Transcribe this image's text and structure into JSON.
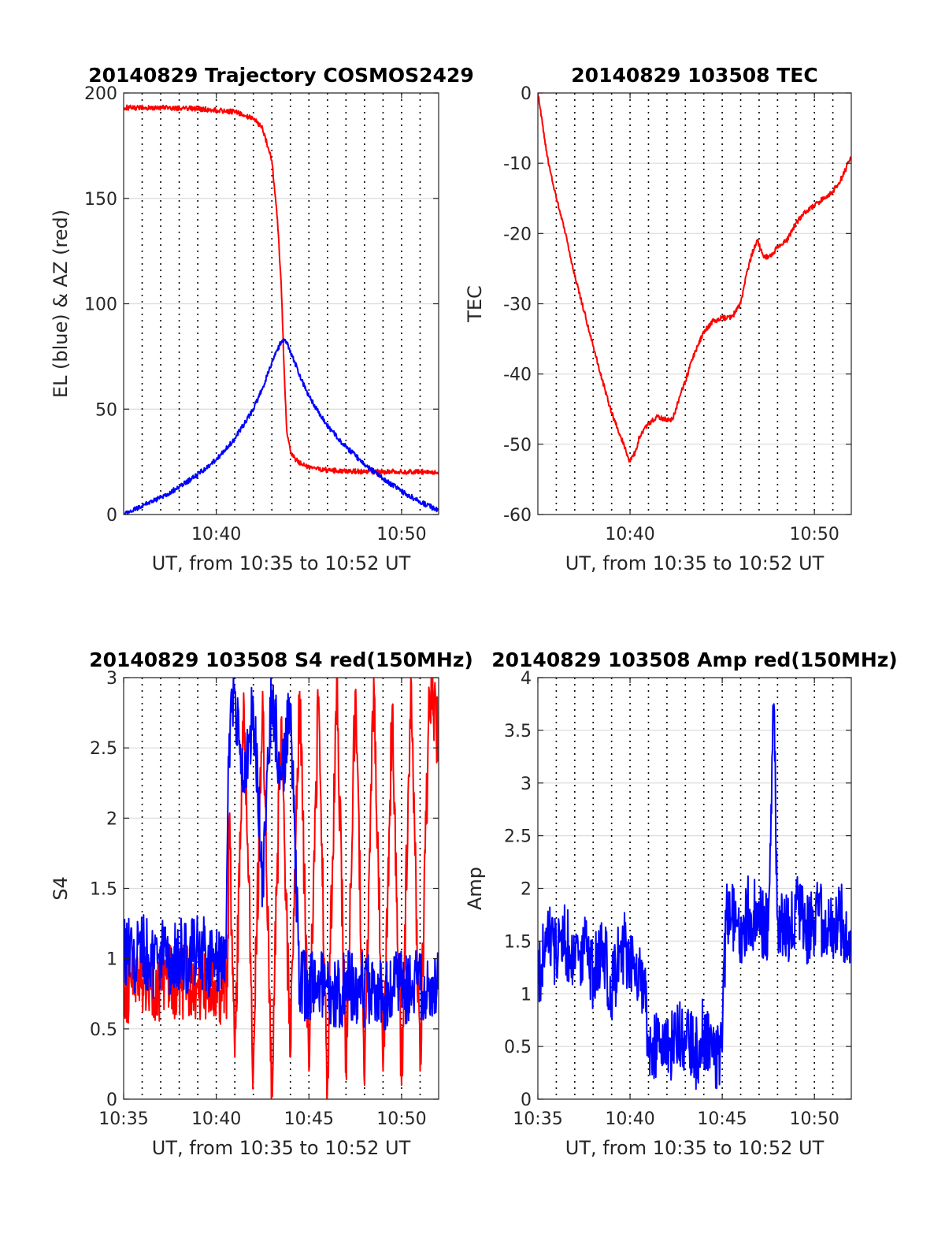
{
  "chart_data": [
    {
      "type": "line",
      "title": "20140829 Trajectory COSMOS2429",
      "xlabel": "UT, from 10:35 to 10:52 UT",
      "ylabel": "EL (blue) & AZ (red)",
      "xlim": [
        0,
        17
      ],
      "ylim": [
        0,
        200
      ],
      "xticks": [
        {
          "v": 5,
          "label": "10:40"
        },
        {
          "v": 15,
          "label": "10:50"
        }
      ],
      "yticks": [
        0,
        50,
        100,
        150,
        200
      ],
      "xgrid_minutes": [
        1,
        2,
        3,
        4,
        5,
        6,
        7,
        8,
        9,
        10,
        11,
        12,
        13,
        14,
        15,
        16
      ],
      "grid": true,
      "series": [
        {
          "color": "#ff0000",
          "x": [
            0,
            2,
            4,
            6,
            7,
            7.5,
            8,
            8.3,
            8.5,
            8.7,
            8.8,
            9,
            9.3,
            9.6,
            10,
            11,
            12,
            13,
            14,
            15,
            16,
            17
          ],
          "values": [
            193,
            193,
            192.5,
            191,
            188,
            183,
            168,
            140,
            110,
            60,
            40,
            30,
            26,
            24,
            22.5,
            21,
            20.5,
            20.4,
            20.3,
            20.3,
            20.3,
            20.3
          ]
        },
        {
          "color": "#0000ff",
          "x": [
            0,
            1,
            2,
            3,
            4,
            5,
            6,
            7,
            7.5,
            8,
            8.4,
            8.6,
            8.8,
            9.2,
            9.6,
            10,
            11,
            12,
            13,
            14,
            15,
            16,
            17
          ],
          "values": [
            0,
            4,
            8,
            13,
            19,
            26,
            36,
            50,
            60,
            72,
            80,
            83,
            82,
            73,
            64,
            56,
            42,
            32,
            24,
            17,
            11,
            6,
            2
          ]
        }
      ]
    },
    {
      "type": "line",
      "title": "20140829 103508 TEC",
      "xlabel": "UT, from 10:35 to 10:52 UT",
      "ylabel": "TEC",
      "xlim": [
        0,
        17
      ],
      "ylim": [
        -60,
        0
      ],
      "xticks": [
        {
          "v": 5,
          "label": "10:40"
        },
        {
          "v": 15,
          "label": "10:50"
        }
      ],
      "yticks": [
        -60,
        -50,
        -40,
        -30,
        -20,
        -10,
        0
      ],
      "xgrid_minutes": [
        1,
        2,
        3,
        4,
        5,
        6,
        7,
        8,
        9,
        10,
        11,
        12,
        13,
        14,
        15,
        16
      ],
      "grid": true,
      "series": [
        {
          "color": "#ff0000",
          "x": [
            0,
            0.5,
            1,
            1.5,
            2,
            2.5,
            3,
            3.5,
            4,
            4.5,
            5,
            5.3,
            5.5,
            6,
            6.5,
            7,
            7.3,
            7.6,
            8,
            8.5,
            9,
            9.5,
            10,
            10.5,
            11,
            11.3,
            11.6,
            11.9,
            12.2,
            12.5,
            13,
            13.5,
            14,
            14.5,
            15,
            15.5,
            16,
            16.5,
            17
          ],
          "values": [
            0,
            -9,
            -15,
            -20,
            -26,
            -31,
            -36,
            -41,
            -45.5,
            -49,
            -52.5,
            -51,
            -49,
            -47,
            -46,
            -46.5,
            -46.5,
            -44,
            -41,
            -37,
            -34,
            -32.5,
            -32,
            -32,
            -30,
            -26,
            -23,
            -21,
            -23,
            -23.5,
            -22,
            -21,
            -18.5,
            -17,
            -16,
            -15,
            -14,
            -12,
            -9
          ]
        }
      ]
    },
    {
      "type": "line",
      "title": "20140829 103508 S4 red(150MHz)",
      "xlabel": "UT, from 10:35 to 10:52 UT",
      "ylabel": "S4",
      "xlim": [
        0,
        17
      ],
      "ylim": [
        0,
        3
      ],
      "xticks": [
        {
          "v": 0,
          "label": "10:35"
        },
        {
          "v": 5,
          "label": "10:40"
        },
        {
          "v": 10,
          "label": "10:45"
        },
        {
          "v": 15,
          "label": "10:50"
        }
      ],
      "yticks": [
        0,
        0.5,
        1,
        1.5,
        2,
        2.5,
        3
      ],
      "xgrid_minutes": [
        1,
        2,
        3,
        4,
        5,
        6,
        7,
        8,
        9,
        10,
        11,
        12,
        13,
        14,
        15,
        16
      ],
      "grid": true,
      "series": [
        {
          "color": "#ff0000",
          "x": [
            0,
            1,
            2,
            3,
            4,
            5,
            5.6,
            5.7,
            6,
            6.5,
            7,
            7.5,
            8,
            8.5,
            9,
            9.5,
            10,
            10.5,
            11,
            11.5,
            12,
            12.5,
            13,
            13.5,
            14,
            14.5,
            15,
            15.5,
            16,
            16.5,
            17
          ],
          "values": [
            0.8,
            0.85,
            0.8,
            0.85,
            0.8,
            0.8,
            0.8,
            2.0,
            0.3,
            2.8,
            0.2,
            2.9,
            0.1,
            2.7,
            0.3,
            2.9,
            0.2,
            2.8,
            0.1,
            3.0,
            0.2,
            2.9,
            0.1,
            3.0,
            0.2,
            2.8,
            0.1,
            3.0,
            0.2,
            2.9,
            2.6
          ]
        },
        {
          "color": "#0000ff",
          "x": [
            0,
            0.5,
            1,
            1.5,
            2,
            2.5,
            3,
            3.5,
            4,
            4.5,
            5,
            5.5,
            5.7,
            6,
            6.5,
            7,
            7.5,
            8,
            8.5,
            9,
            9.5,
            10,
            10.5,
            11,
            11.5,
            12,
            12.5,
            13,
            13.5,
            14,
            14.5,
            15,
            15.5,
            16,
            16.5,
            17
          ],
          "values": [
            1.05,
            1.0,
            1.1,
            0.95,
            1.05,
            1.0,
            1.05,
            1.0,
            1.1,
            1.0,
            1.0,
            1.0,
            2.6,
            2.9,
            2.2,
            2.8,
            1.5,
            2.9,
            2.3,
            2.8,
            0.8,
            0.8,
            0.78,
            0.8,
            0.75,
            0.8,
            0.8,
            0.78,
            0.8,
            0.75,
            0.8,
            0.78,
            0.8,
            0.78,
            0.8,
            0.78
          ]
        }
      ]
    },
    {
      "type": "line",
      "title": "20140829 103508 Amp red(150MHz)",
      "xlabel": "UT, from 10:35 to 10:52 UT",
      "ylabel": "Amp",
      "xlim": [
        0,
        17
      ],
      "ylim": [
        0,
        4
      ],
      "xticks": [
        {
          "v": 0,
          "label": "10:35"
        },
        {
          "v": 5,
          "label": "10:40"
        },
        {
          "v": 10,
          "label": "10:45"
        },
        {
          "v": 15,
          "label": "10:50"
        }
      ],
      "yticks": [
        0,
        0.5,
        1,
        1.5,
        2,
        2.5,
        3,
        3.5,
        4
      ],
      "xgrid_minutes": [
        1,
        2,
        3,
        4,
        5,
        6,
        7,
        8,
        9,
        10,
        11,
        12,
        13,
        14,
        15,
        16
      ],
      "grid": true,
      "series": [
        {
          "color": "#0000ff",
          "x": [
            0,
            0.5,
            1,
            1.5,
            2,
            2.5,
            3,
            3.5,
            4,
            4.5,
            5,
            5.5,
            5.8,
            6,
            6.5,
            7,
            7.5,
            8,
            8.5,
            9,
            9.5,
            10,
            10.2,
            10.5,
            11,
            11.5,
            12,
            12.5,
            12.8,
            13,
            13.5,
            14,
            14.5,
            15,
            15.5,
            16,
            16.5,
            17
          ],
          "values": [
            1.1,
            1.5,
            1.4,
            1.5,
            1.3,
            1.5,
            1.2,
            1.5,
            1.0,
            1.5,
            1.3,
            1.2,
            1.0,
            0.4,
            0.55,
            0.45,
            0.55,
            0.6,
            0.4,
            0.65,
            0.4,
            0.45,
            1.7,
            1.7,
            1.6,
            1.8,
            1.7,
            1.6,
            3.75,
            1.7,
            1.6,
            1.8,
            1.6,
            1.7,
            1.7,
            1.6,
            1.7,
            1.5
          ]
        }
      ]
    }
  ]
}
